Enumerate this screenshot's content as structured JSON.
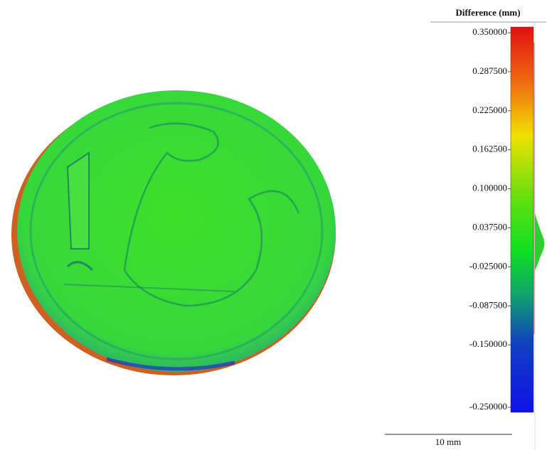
{
  "legend": {
    "title": "Difference (mm)",
    "range": [
      -0.25,
      0.35
    ],
    "ticks": [
      {
        "value": 0.35,
        "label": "0.350000"
      },
      {
        "value": 0.2875,
        "label": "0.287500"
      },
      {
        "value": 0.225,
        "label": "0.225000"
      },
      {
        "value": 0.1625,
        "label": "0.162500"
      },
      {
        "value": 0.1,
        "label": "0.100000"
      },
      {
        "value": 0.0375,
        "label": "0.037500"
      },
      {
        "value": -0.025,
        "label": "-0.025000"
      },
      {
        "value": -0.0875,
        "label": "-0.087500"
      },
      {
        "value": -0.15,
        "label": "-0.150000"
      },
      {
        "value": -0.25,
        "label": "-0.250000"
      }
    ]
  },
  "scale_bar": {
    "label": "10 mm"
  }
}
